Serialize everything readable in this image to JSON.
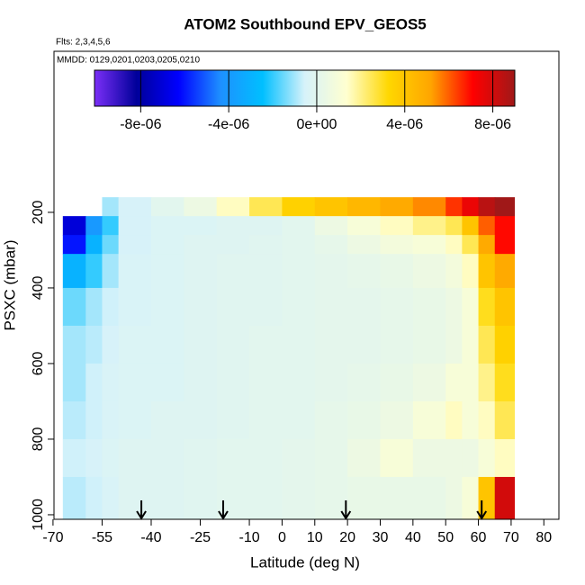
{
  "chart_data": {
    "type": "heatmap",
    "title": "ATOM2 Southbound EPV_GEOS5",
    "subtitle": "Flts: 2,3,4,5,6",
    "annotation": "MMDD: 0129,0201,0203,0205,0210",
    "x_label": "Latitude (deg N)",
    "y_label": "PSXC (mbar)",
    "xlim": [
      -69.7,
      84.6
    ],
    "xticks": [
      -70,
      -55,
      -40,
      -25,
      -10,
      0,
      10,
      20,
      30,
      40,
      50,
      60,
      70,
      80
    ],
    "ylim": [
      1012,
      -226
    ],
    "yticks": [
      200,
      400,
      600,
      800,
      1000
    ],
    "x_edges": [
      -67,
      -60,
      -55,
      -50,
      -40,
      -30,
      -20,
      -10,
      0,
      10,
      20,
      30,
      40,
      50,
      55,
      60,
      65,
      71
    ],
    "y_edges": [
      160,
      210,
      260,
      310,
      400,
      500,
      600,
      700,
      800,
      900,
      1010
    ],
    "values": [
      [
        null,
        null,
        -1e-06,
        -5e-07,
        0,
        5e-07,
        1.5e-06,
        2.5e-06,
        3.5e-06,
        4e-06,
        4.5e-06,
        5e-06,
        5.5e-06,
        6.5e-06,
        7.5e-06,
        8.5e-06,
        9e-06
      ],
      [
        -7e-06,
        -4e-06,
        -2e-06,
        -5e-07,
        -3e-07,
        -3e-07,
        -2e-07,
        -2e-07,
        0,
        5e-07,
        1e-06,
        1.5e-06,
        2e-06,
        2.5e-06,
        4e-06,
        6e-06,
        7e-06
      ],
      [
        -6e-06,
        -3e-06,
        -1.5e-06,
        -5e-07,
        -3e-07,
        -2e-07,
        -2e-07,
        -1e-07,
        0,
        2e-07,
        5e-07,
        8e-07,
        1e-06,
        1.5e-06,
        2.5e-06,
        5e-06,
        7e-06
      ],
      [
        -3e-06,
        -2e-06,
        -1e-06,
        -4e-07,
        -3e-07,
        -2e-07,
        -1e-07,
        -1e-07,
        0,
        1e-07,
        2e-07,
        3e-07,
        5e-07,
        8e-07,
        1.5e-06,
        4e-06,
        5e-06
      ],
      [
        -1.5e-06,
        -1e-06,
        -6e-07,
        -4e-07,
        -3e-07,
        -2e-07,
        -1e-07,
        -1e-07,
        0,
        1e-07,
        1e-07,
        2e-07,
        3e-07,
        5e-07,
        1e-06,
        3e-06,
        4e-06
      ],
      [
        -1e-06,
        -8e-07,
        -5e-07,
        -3e-07,
        -3e-07,
        -2e-07,
        -1e-07,
        0,
        0,
        1e-07,
        1e-07,
        2e-07,
        3e-07,
        5e-07,
        1e-06,
        2.5e-06,
        3.5e-06
      ],
      [
        -1e-06,
        -6e-07,
        -4e-07,
        -3e-07,
        -3e-07,
        -2e-07,
        -1e-07,
        0,
        0,
        1e-07,
        2e-07,
        3e-07,
        5e-07,
        1e-06,
        1e-06,
        2e-06,
        3e-06
      ],
      [
        -8e-07,
        -6e-07,
        -4e-07,
        -3e-07,
        -2e-07,
        -2e-07,
        -1e-07,
        0,
        0,
        2e-07,
        3e-07,
        5e-07,
        1e-06,
        1.5e-06,
        1e-06,
        1.5e-06,
        2.5e-06
      ],
      [
        -6e-07,
        -5e-07,
        -3e-07,
        -2e-07,
        -2e-07,
        -1e-07,
        0,
        0,
        1e-07,
        2e-07,
        5e-07,
        1e-06,
        5e-07,
        5e-07,
        5e-07,
        1e-06,
        1.5e-06
      ],
      [
        -8e-07,
        -6e-07,
        -4e-07,
        -2e-07,
        -2e-07,
        -1e-07,
        0,
        0,
        1e-07,
        2e-07,
        3e-07,
        3e-07,
        3e-07,
        5e-07,
        1e-06,
        4e-06,
        8e-06
      ]
    ],
    "arrows": [
      -43,
      -18,
      19.5,
      61
    ],
    "clim": [
      -1.01e-05,
      9e-06
    ],
    "colors": [
      "#7b2ff7",
      "#00009a",
      "#0000ff",
      "#1e90ff",
      "#00bfff",
      "#d6f2fa",
      "#ffffd0",
      "#ffd700",
      "#ffa500",
      "#ff0000",
      "#a01818"
    ],
    "colorbar_ticks": [
      {
        "value": -8e-06,
        "label": "-8e-06"
      },
      {
        "value": -4e-06,
        "label": "-4e-06"
      },
      {
        "value": 0,
        "label": "0e+00"
      },
      {
        "value": 4e-06,
        "label": "4e-06"
      },
      {
        "value": 8e-06,
        "label": "8e-06"
      }
    ]
  }
}
